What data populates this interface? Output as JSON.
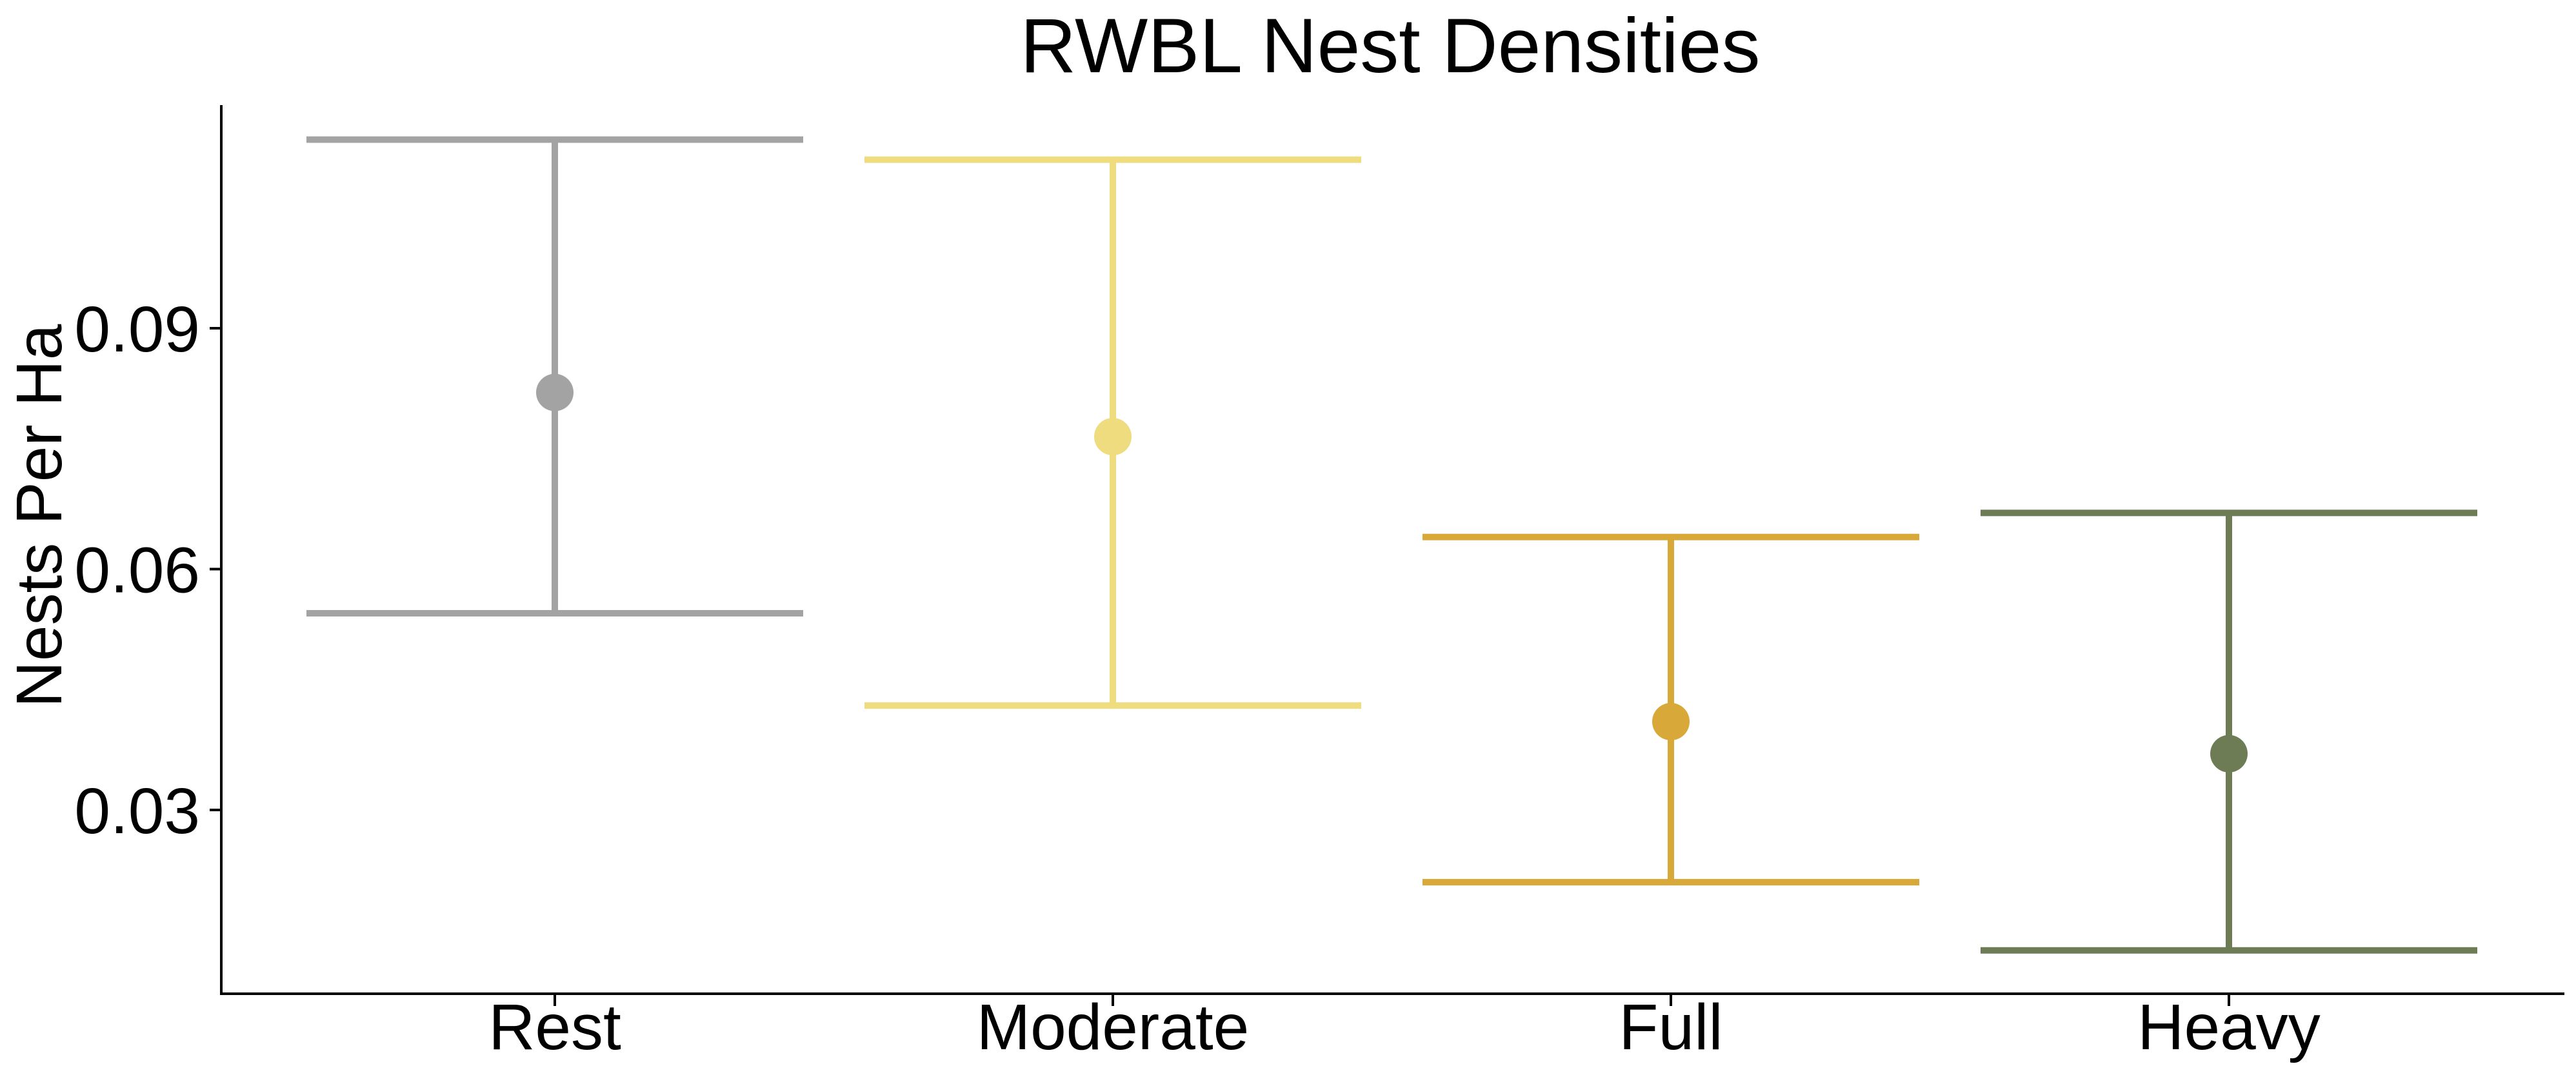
{
  "chart_data": {
    "type": "errorbar",
    "title": "RWBL Nest Densities",
    "xlabel": "",
    "ylabel": "Nests Per Ha",
    "categories": [
      "Rest",
      "Moderate",
      "Full",
      "Heavy"
    ],
    "points": [
      {
        "category": "Rest",
        "value": 0.082,
        "lower": 0.0545,
        "upper": 0.1135,
        "color": "#A3A3A3"
      },
      {
        "category": "Moderate",
        "value": 0.0765,
        "lower": 0.043,
        "upper": 0.111,
        "color": "#EFDC7E"
      },
      {
        "category": "Full",
        "value": 0.041,
        "lower": 0.021,
        "upper": 0.064,
        "color": "#D8A838"
      },
      {
        "category": "Heavy",
        "value": 0.037,
        "lower": 0.0125,
        "upper": 0.067,
        "color": "#6E7C55"
      }
    ],
    "yticks": [
      "0.03",
      "0.06",
      "0.09"
    ],
    "ytick_values": [
      0.03,
      0.06,
      0.09
    ],
    "ylim": [
      0.0071,
      0.1178
    ],
    "grid": false,
    "legend": "none"
  }
}
